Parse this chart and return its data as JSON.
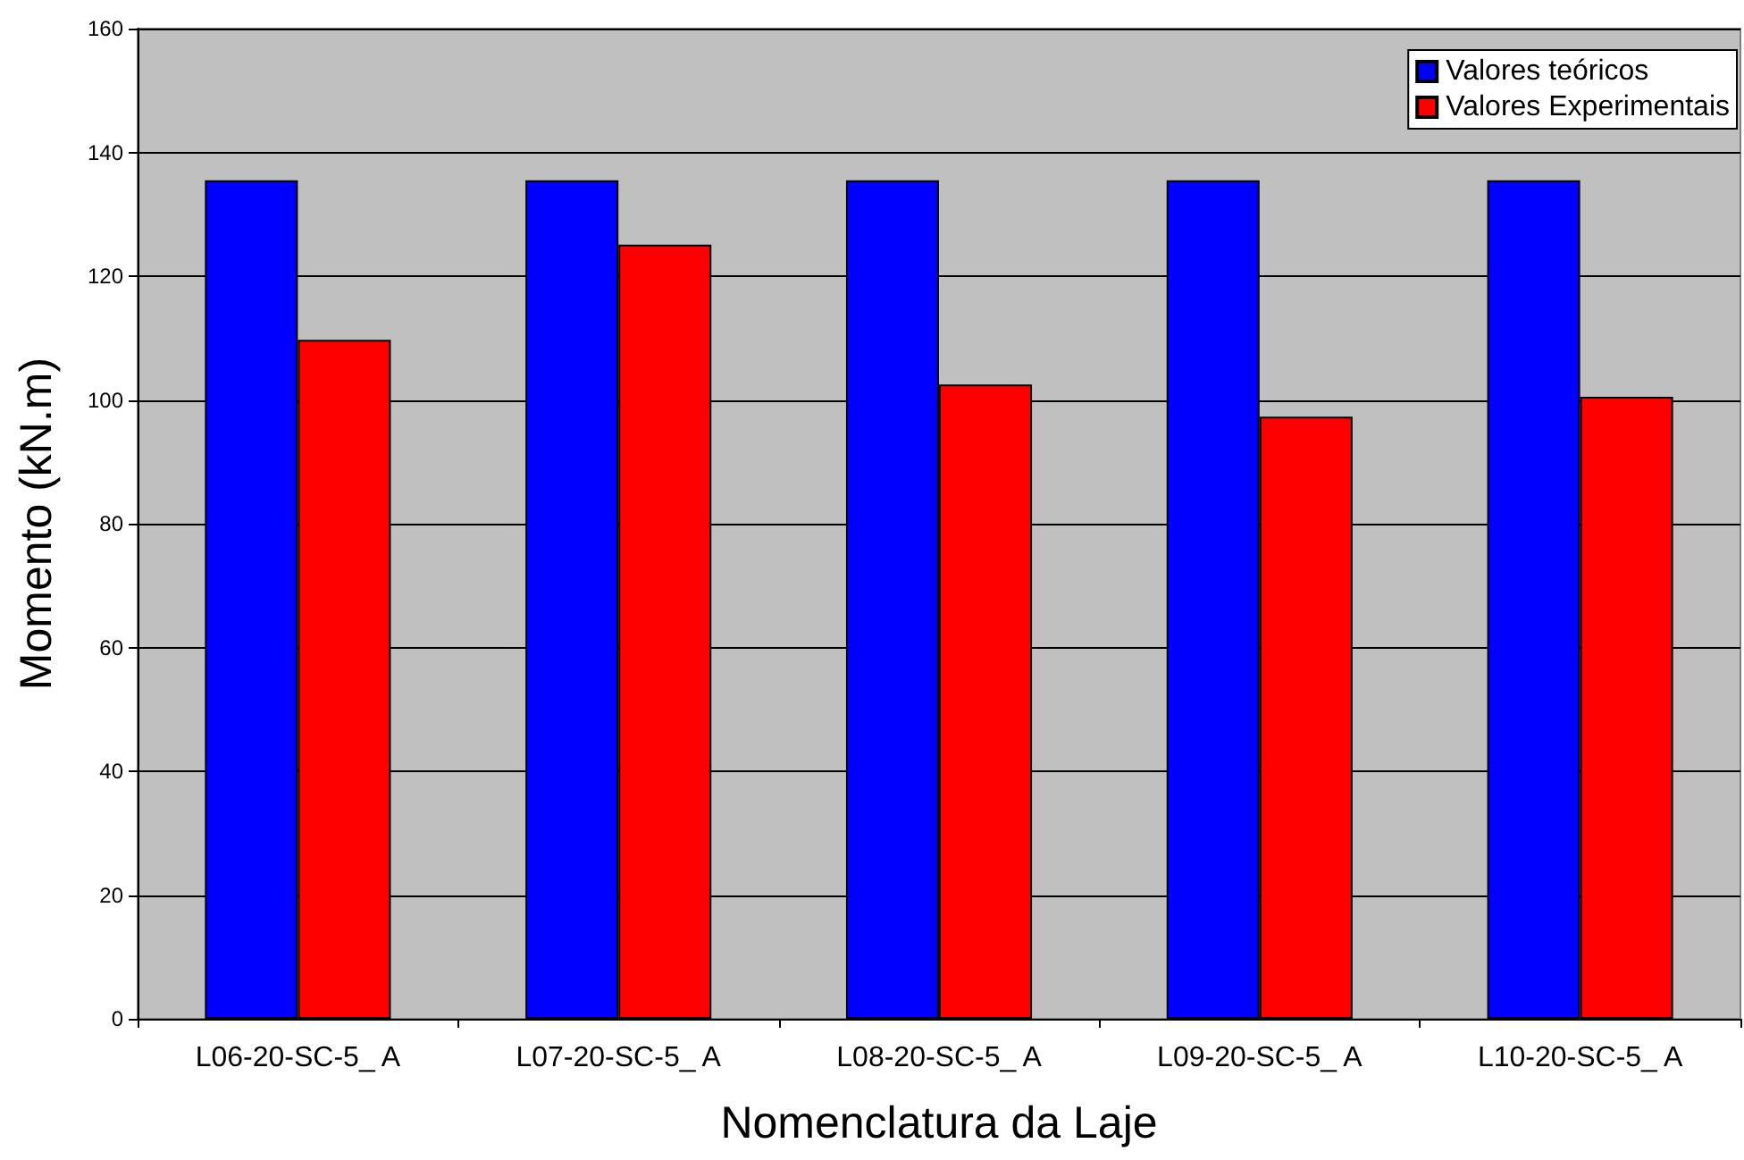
{
  "chart_data": {
    "type": "bar",
    "xlabel": "Nomenclatura da Laje",
    "ylabel": "Momento (kN.m)",
    "categories": [
      "L06-20-SC-5_ A",
      "L07-20-SC-5_ A",
      "L08-20-SC-5_ A",
      "L09-20-SC-5_ A",
      "L10-20-SC-5_ A"
    ],
    "series": [
      {
        "name": "Valores teóricos",
        "color": "#0000ff",
        "values": [
          135.5,
          135.5,
          135.5,
          135.5,
          135.5
        ]
      },
      {
        "name": "Valores Experimentais",
        "color": "#ff0000",
        "values": [
          109.7,
          125.1,
          102.5,
          97.3,
          100.5
        ]
      }
    ],
    "ylim": [
      0,
      160
    ],
    "yticks": [
      0,
      20,
      40,
      60,
      80,
      100,
      120,
      140,
      160
    ],
    "grid": "y",
    "legend": "top right"
  }
}
